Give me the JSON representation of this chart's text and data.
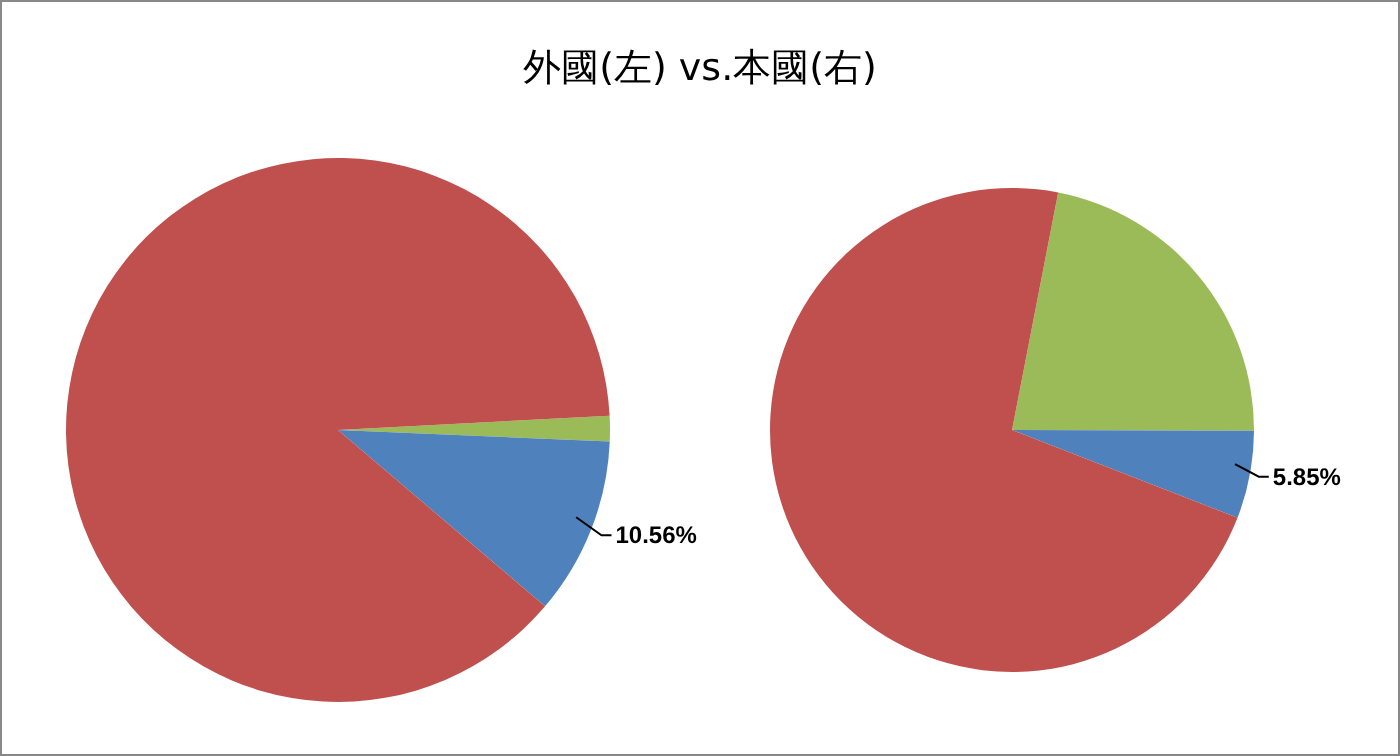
{
  "chart_data": [
    {
      "type": "pie",
      "title": "外國(左) vs.本國(右)",
      "categories": [
        null,
        null,
        null
      ],
      "values": [
        1.5,
        10.56,
        87.94
      ],
      "colors": [
        "#9bbb59",
        "#4f81bd",
        "#c0504d"
      ],
      "value_labels": [
        null,
        "10.56%",
        null
      ]
    },
    {
      "type": "pie",
      "categories": [
        null,
        null,
        null
      ],
      "values": [
        22,
        5.85,
        72.15
      ],
      "colors": [
        "#9bbb59",
        "#4f81bd",
        "#c0504d"
      ],
      "value_labels": [
        null,
        "5.85%",
        null
      ]
    }
  ]
}
